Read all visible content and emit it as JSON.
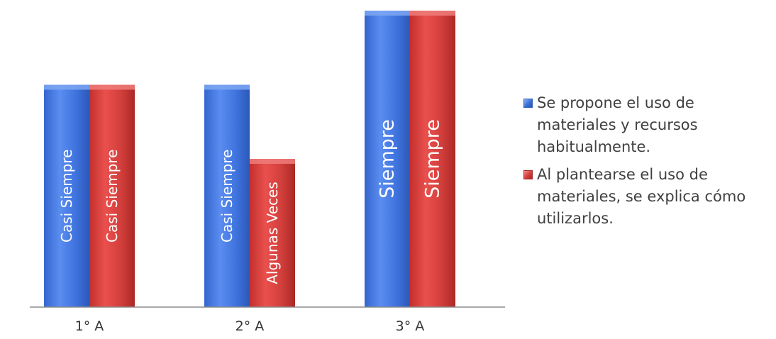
{
  "chart_data": {
    "type": "bar",
    "categories": [
      "1° A",
      "2° A",
      "3° A"
    ],
    "series": [
      {
        "name": "Se propone el uso de materiales y recursos habitualmente.",
        "values": [
          3,
          3,
          4
        ],
        "labels": [
          "Casi Siempre",
          "Casi Siempre",
          "Siempre"
        ],
        "color": "#3a6fd8"
      },
      {
        "name": "Al plantearse el uso de materiales, se explica cómo utilizarlos.",
        "values": [
          3,
          2,
          4
        ],
        "labels": [
          "Casi Siempre",
          "Algunas Veces",
          "Siempre"
        ],
        "color": "#d13c39"
      }
    ],
    "ylim": [
      0,
      4
    ],
    "grid": false,
    "legend": "right",
    "bar_style": "3d-gradient"
  }
}
